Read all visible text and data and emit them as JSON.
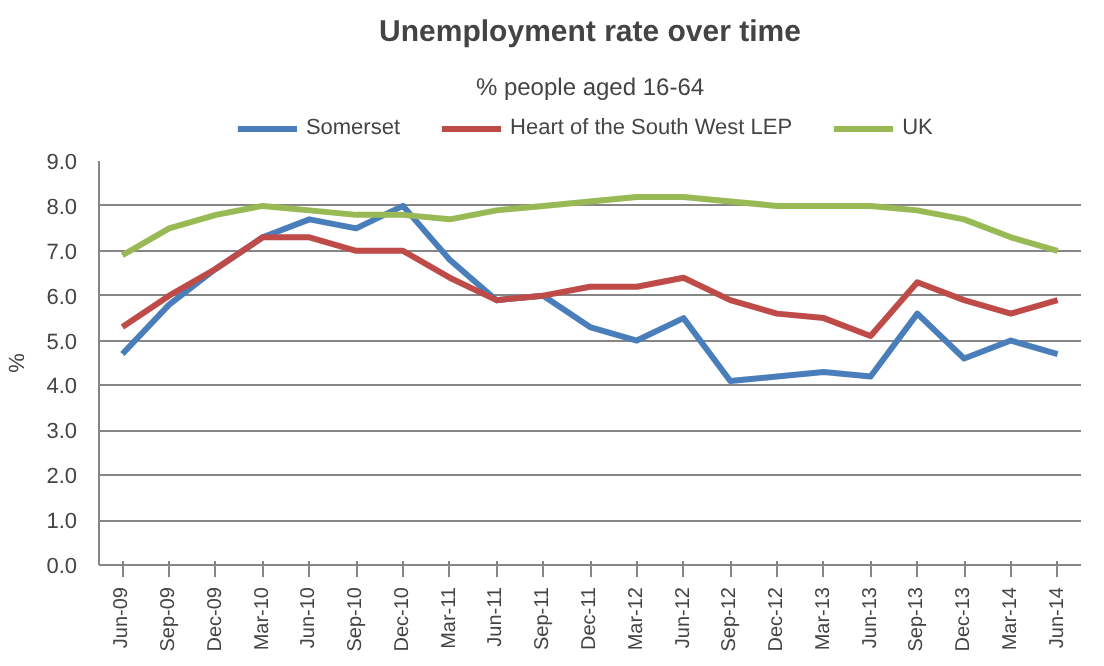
{
  "chart_data": {
    "type": "line",
    "title": "Unemployment rate over time",
    "subtitle": "% people aged 16-64",
    "ylabel": "%",
    "categories": [
      "Jun-09",
      "Sep-09",
      "Dec-09",
      "Mar-10",
      "Jun-10",
      "Sep-10",
      "Dec-10",
      "Mar-11",
      "Jun-11",
      "Sep-11",
      "Dec-11",
      "Mar-12",
      "Jun-12",
      "Sep-12",
      "Dec-12",
      "Mar-13",
      "Jun-13",
      "Sep-13",
      "Dec-13",
      "Mar-14",
      "Jun-14"
    ],
    "series": [
      {
        "name": "Somerset",
        "color": "#4a7ebb",
        "values": [
          4.7,
          5.8,
          6.6,
          7.3,
          7.7,
          7.5,
          8.0,
          6.8,
          5.9,
          6.0,
          5.3,
          5.0,
          5.5,
          4.1,
          4.2,
          4.3,
          4.2,
          5.6,
          4.6,
          5.0,
          4.7
        ]
      },
      {
        "name": "Heart of the South West LEP",
        "color": "#be4b48",
        "values": [
          5.3,
          6.0,
          6.6,
          7.3,
          7.3,
          7.0,
          7.0,
          6.4,
          5.9,
          6.0,
          6.2,
          6.2,
          6.4,
          5.9,
          5.6,
          5.5,
          5.1,
          6.3,
          5.9,
          5.6,
          5.9
        ]
      },
      {
        "name": "UK",
        "color": "#98b954",
        "values": [
          6.9,
          7.5,
          7.8,
          8.0,
          7.9,
          7.8,
          7.8,
          7.7,
          7.9,
          8.0,
          8.1,
          8.2,
          8.2,
          8.1,
          8.0,
          8.0,
          8.0,
          7.9,
          7.7,
          7.3,
          7.0
        ]
      }
    ],
    "ylim": [
      0,
      9
    ],
    "yticks": [
      {
        "value": 0,
        "label": "0.0"
      },
      {
        "value": 1,
        "label": "1.0"
      },
      {
        "value": 2,
        "label": "2.0"
      },
      {
        "value": 3,
        "label": "3.0"
      },
      {
        "value": 4,
        "label": "4.0"
      },
      {
        "value": 5,
        "label": "5.0"
      },
      {
        "value": 6,
        "label": "6.0"
      },
      {
        "value": 7,
        "label": "7.0"
      },
      {
        "value": 8,
        "label": "8.0"
      },
      {
        "value": 9,
        "label": "9.0"
      }
    ],
    "grid": "y",
    "legend": "top",
    "marker": "none",
    "line_style": "solid"
  }
}
